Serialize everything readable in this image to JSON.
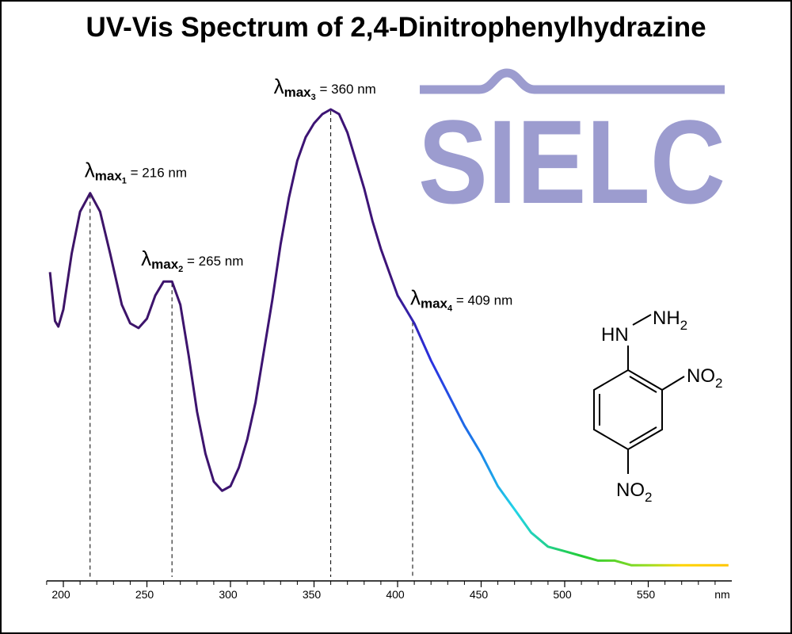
{
  "chart_data": {
    "type": "line",
    "title": "UV-Vis Spectrum of 2,4-Dinitrophenylhydrazine",
    "xlabel": "nm",
    "xlim": [
      190,
      600
    ],
    "xticks": [
      200,
      250,
      300,
      350,
      400,
      450,
      500,
      550
    ],
    "xticks_minor": [
      190,
      210,
      220,
      230,
      240,
      260,
      270,
      280,
      290,
      310,
      320,
      330,
      340,
      360,
      370,
      380,
      390,
      410,
      420,
      430,
      440,
      460,
      470,
      480,
      490,
      510,
      520,
      530,
      540,
      560,
      570,
      580,
      590
    ],
    "ylim": [
      0,
      1
    ],
    "x": [
      192,
      195,
      197,
      200,
      205,
      210,
      216,
      222,
      228,
      235,
      240,
      245,
      250,
      255,
      260,
      265,
      270,
      275,
      280,
      285,
      290,
      295,
      300,
      305,
      310,
      315,
      320,
      325,
      330,
      335,
      340,
      345,
      350,
      355,
      360,
      365,
      370,
      375,
      380,
      385,
      390,
      395,
      400,
      405,
      410,
      420,
      430,
      440,
      450,
      460,
      470,
      480,
      490,
      500,
      510,
      520,
      530,
      540,
      550,
      560,
      570,
      580,
      590,
      598
    ],
    "values": [
      0.65,
      0.545,
      0.533,
      0.57,
      0.69,
      0.78,
      0.82,
      0.78,
      0.69,
      0.58,
      0.54,
      0.53,
      0.55,
      0.6,
      0.63,
      0.63,
      0.58,
      0.47,
      0.35,
      0.26,
      0.2,
      0.18,
      0.19,
      0.23,
      0.29,
      0.37,
      0.48,
      0.59,
      0.71,
      0.81,
      0.89,
      0.94,
      0.97,
      0.99,
      1.0,
      0.99,
      0.95,
      0.89,
      0.83,
      0.76,
      0.7,
      0.65,
      0.6,
      0.57,
      0.54,
      0.46,
      0.39,
      0.32,
      0.26,
      0.19,
      0.14,
      0.09,
      0.06,
      0.05,
      0.04,
      0.03,
      0.03,
      0.02,
      0.02,
      0.02,
      0.02,
      0.02,
      0.02,
      0.02
    ],
    "line_gradient": [
      {
        "x": 190,
        "color": "#3d1466"
      },
      {
        "x": 395,
        "color": "#3d1478"
      },
      {
        "x": 420,
        "color": "#2a30e0"
      },
      {
        "x": 450,
        "color": "#1a86ea"
      },
      {
        "x": 470,
        "color": "#22d4e8"
      },
      {
        "x": 510,
        "color": "#22cc33"
      },
      {
        "x": 550,
        "color": "#99dd22"
      },
      {
        "x": 570,
        "color": "#ffd400"
      },
      {
        "x": 600,
        "color": "#ffc400"
      }
    ],
    "annotations": [
      {
        "symbol": "λ",
        "sub": "max",
        "index": "1",
        "text": "= 216 nm",
        "x": 216
      },
      {
        "symbol": "λ",
        "sub": "max",
        "index": "2",
        "text": "= 265 nm",
        "x": 265
      },
      {
        "symbol": "λ",
        "sub": "max",
        "index": "3",
        "text": "= 360 nm",
        "x": 360
      },
      {
        "symbol": "λ",
        "sub": "max",
        "index": "4",
        "text": "= 409 nm",
        "x": 409
      }
    ],
    "logo": "SIELC",
    "logo_color": "#9c9ccf",
    "structure": {
      "hydrazine_h": "HN",
      "amine": {
        "text": "NH",
        "sub": "2"
      },
      "nitro_2": {
        "text": "NO",
        "sub": "2"
      },
      "nitro_4": {
        "text": "NO",
        "sub": "2"
      }
    }
  }
}
